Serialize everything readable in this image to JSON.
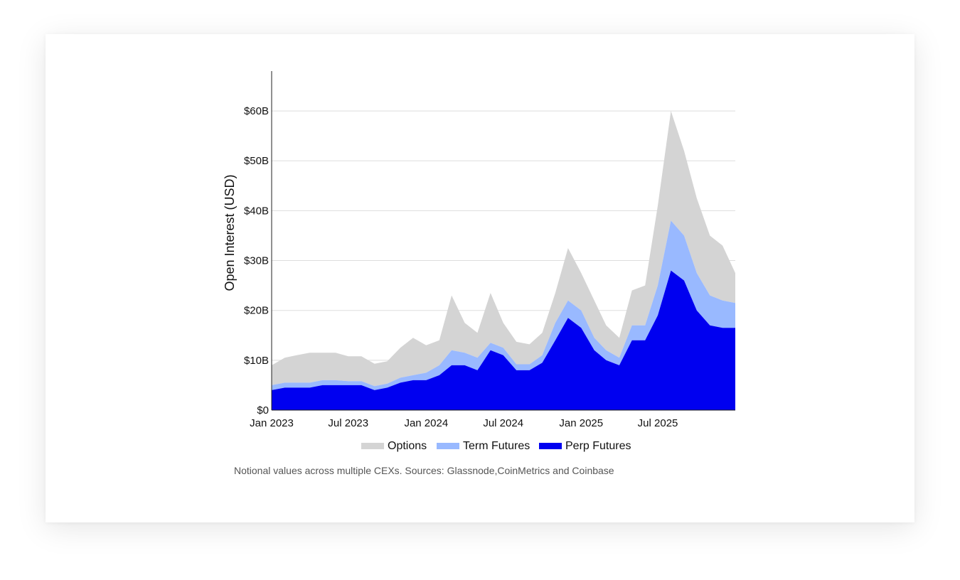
{
  "chart_data": {
    "type": "area",
    "stacked": true,
    "ylabel": "Open Interest (USD)",
    "ylim": [
      0,
      64
    ],
    "y_ticks": [
      {
        "value": 0,
        "label": "$0"
      },
      {
        "value": 10,
        "label": "$10B"
      },
      {
        "value": 20,
        "label": "$20B"
      },
      {
        "value": 30,
        "label": "$30B"
      },
      {
        "value": 40,
        "label": "$40B"
      },
      {
        "value": 50,
        "label": "$50B"
      },
      {
        "value": 60,
        "label": "$60B"
      }
    ],
    "x_range": [
      "2023-01-01",
      "2025-12-31"
    ],
    "x_ticks": [
      {
        "date": "2023-01-01",
        "label": "Jan 2023"
      },
      {
        "date": "2023-07-01",
        "label": "Jul 2023"
      },
      {
        "date": "2024-01-01",
        "label": "Jan 2024"
      },
      {
        "date": "2024-07-01",
        "label": "Jul 2024"
      },
      {
        "date": "2025-01-01",
        "label": "Jan 2025"
      },
      {
        "date": "2025-07-01",
        "label": "Jul 2025"
      }
    ],
    "grid": "horizontal",
    "legend_position": "bottom-center",
    "x": [
      "2023-01-01",
      "2023-02-01",
      "2023-03-01",
      "2023-04-01",
      "2023-05-01",
      "2023-06-01",
      "2023-07-01",
      "2023-08-01",
      "2023-09-01",
      "2023-10-01",
      "2023-11-01",
      "2023-12-01",
      "2024-01-01",
      "2024-02-01",
      "2024-03-01",
      "2024-04-01",
      "2024-05-01",
      "2024-06-01",
      "2024-07-01",
      "2024-08-01",
      "2024-09-01",
      "2024-10-01",
      "2024-11-01",
      "2024-12-01",
      "2025-01-01",
      "2025-02-01",
      "2025-03-01",
      "2025-04-01",
      "2025-05-01",
      "2025-06-01",
      "2025-07-01",
      "2025-08-01",
      "2025-09-01",
      "2025-10-01",
      "2025-11-01",
      "2025-12-01",
      "2025-12-31"
    ],
    "series": [
      {
        "name": "Perp Futures",
        "color": "#0000f0",
        "values": [
          4.0,
          4.5,
          4.5,
          4.5,
          5.0,
          5.0,
          5.0,
          5.0,
          4.0,
          4.5,
          5.5,
          6.0,
          6.0,
          7.0,
          9.0,
          9.0,
          8.0,
          12.0,
          11.0,
          8.0,
          8.0,
          9.5,
          14.0,
          18.5,
          16.5,
          12.0,
          10.0,
          9.0,
          14.0,
          14.0,
          19.0,
          28.0,
          26.0,
          20.0,
          17.0,
          16.5,
          16.5
        ]
      },
      {
        "name": "Term Futures",
        "color": "#99b9ff",
        "values": [
          1.0,
          1.0,
          1.0,
          1.0,
          1.0,
          1.0,
          0.8,
          0.8,
          0.8,
          0.8,
          1.0,
          1.0,
          1.5,
          2.0,
          3.0,
          2.5,
          2.5,
          1.5,
          1.5,
          1.2,
          1.2,
          1.5,
          3.5,
          3.5,
          3.5,
          2.5,
          2.0,
          1.5,
          3.0,
          3.0,
          6.0,
          10.0,
          9.0,
          7.5,
          6.0,
          5.5,
          5.0
        ]
      },
      {
        "name": "Options",
        "color": "#d4d4d4",
        "values": [
          4.0,
          5.0,
          5.5,
          6.0,
          5.5,
          5.5,
          5.0,
          5.0,
          4.5,
          4.5,
          6.0,
          7.5,
          5.5,
          5.0,
          11.0,
          6.0,
          5.0,
          10.0,
          5.0,
          4.5,
          4.0,
          4.5,
          6.0,
          10.5,
          7.5,
          7.5,
          5.0,
          4.0,
          7.0,
          8.0,
          16.0,
          22.0,
          17.0,
          15.0,
          12.0,
          11.0,
          6.0
        ]
      }
    ],
    "legend_order": [
      "Options",
      "Term Futures",
      "Perp Futures"
    ]
  },
  "caption": "Notional values across multiple CEXs. Sources: Glassnode,CoinMetrics and Coinbase"
}
